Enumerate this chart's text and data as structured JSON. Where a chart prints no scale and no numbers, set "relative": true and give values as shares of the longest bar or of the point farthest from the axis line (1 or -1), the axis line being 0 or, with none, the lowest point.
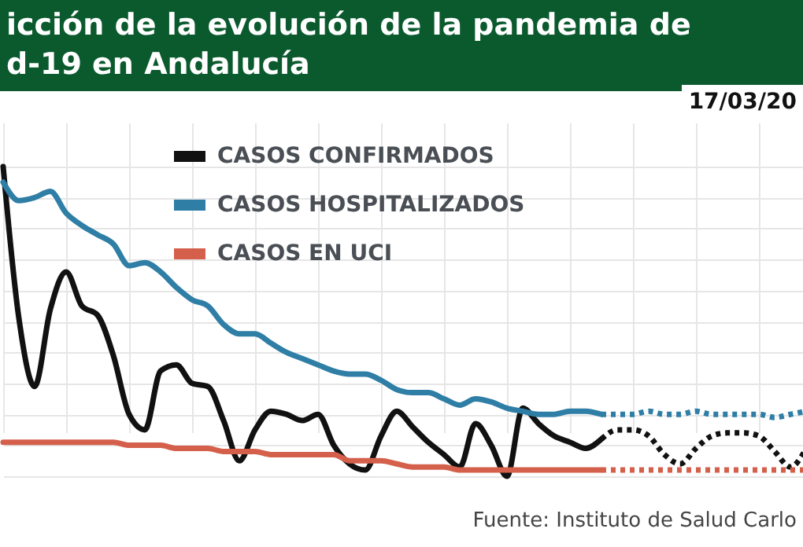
{
  "chart_data": {
    "type": "line",
    "title": "icción de la evolución de la pandemia de\nd-19 en Andalucía",
    "subtitle": "17/03/20",
    "annotations": [
      "Fuente: Instituto de Salud Carlo"
    ],
    "relative": true,
    "grid": true,
    "legend": "top",
    "categories": [
      null,
      null,
      null,
      null,
      null,
      null,
      null,
      null,
      null,
      null,
      null,
      null,
      null,
      null,
      null,
      null,
      null,
      null,
      null,
      null,
      null,
      null,
      null,
      null,
      null,
      null,
      null,
      null,
      null,
      null,
      null,
      null,
      null,
      null,
      null,
      null,
      null,
      null,
      null,
      null,
      null,
      null,
      null,
      null,
      null,
      null,
      null,
      null,
      null,
      null,
      null,
      null
    ],
    "series": [
      {
        "name": "CASOS CONFIRMADOS",
        "color": "#111111",
        "values": [
          1.0,
          0.51,
          0.29,
          0.54,
          0.66,
          0.55,
          0.52,
          0.39,
          0.2,
          0.15,
          0.34,
          0.36,
          0.3,
          0.29,
          0.18,
          0.05,
          0.15,
          0.21,
          0.2,
          0.18,
          0.2,
          0.1,
          0.04,
          0.02,
          0.13,
          0.21,
          0.16,
          0.11,
          0.07,
          0.03,
          0.17,
          0.1,
          0.0,
          0.22,
          0.17,
          0.13,
          0.11,
          0.09,
          0.12,
          null,
          null,
          null,
          null,
          null,
          null,
          null,
          null,
          null,
          null,
          null,
          null,
          null
        ]
      },
      {
        "name": "CASOS HOSPITALIZADOS",
        "color": "#2f7ea6",
        "values": [
          0.95,
          0.89,
          0.9,
          0.92,
          0.85,
          0.81,
          0.78,
          0.75,
          0.68,
          0.69,
          0.66,
          0.61,
          0.57,
          0.55,
          0.49,
          0.46,
          0.46,
          0.43,
          0.4,
          0.38,
          0.36,
          0.34,
          0.33,
          0.33,
          0.31,
          0.28,
          0.27,
          0.27,
          0.25,
          0.23,
          0.25,
          0.24,
          0.22,
          0.21,
          0.2,
          0.2,
          0.21,
          0.21,
          0.2,
          null,
          null,
          null,
          null,
          null,
          null,
          null,
          null,
          null,
          null,
          null,
          null,
          null
        ]
      },
      {
        "name": "CASOS EN UCI",
        "color": "#d4604b",
        "values": [
          0.11,
          0.11,
          0.11,
          0.11,
          0.11,
          0.11,
          0.11,
          0.11,
          0.1,
          0.1,
          0.1,
          0.09,
          0.09,
          0.09,
          0.08,
          0.08,
          0.08,
          0.07,
          0.07,
          0.07,
          0.07,
          0.07,
          0.05,
          0.05,
          0.05,
          0.04,
          0.03,
          0.03,
          0.03,
          0.02,
          0.02,
          0.02,
          0.02,
          0.02,
          0.02,
          0.02,
          0.02,
          0.02,
          0.02,
          null,
          null,
          null,
          null,
          null,
          null,
          null,
          null,
          null,
          null,
          null,
          null,
          null
        ]
      },
      {
        "color": "#111111",
        "line_style": "dotted",
        "values": [
          null,
          null,
          null,
          null,
          null,
          null,
          null,
          null,
          null,
          null,
          null,
          null,
          null,
          null,
          null,
          null,
          null,
          null,
          null,
          null,
          null,
          null,
          null,
          null,
          null,
          null,
          null,
          null,
          null,
          null,
          null,
          null,
          null,
          null,
          null,
          null,
          null,
          null,
          0.12,
          0.15,
          0.15,
          0.13,
          0.07,
          0.04,
          0.09,
          0.13,
          0.14,
          0.14,
          0.13,
          0.08,
          0.03,
          0.09
        ]
      },
      {
        "color": "#2f7ea6",
        "line_style": "dotted",
        "values": [
          null,
          null,
          null,
          null,
          null,
          null,
          null,
          null,
          null,
          null,
          null,
          null,
          null,
          null,
          null,
          null,
          null,
          null,
          null,
          null,
          null,
          null,
          null,
          null,
          null,
          null,
          null,
          null,
          null,
          null,
          null,
          null,
          null,
          null,
          null,
          null,
          null,
          null,
          0.2,
          0.2,
          0.2,
          0.21,
          0.2,
          0.2,
          0.21,
          0.2,
          0.2,
          0.2,
          0.2,
          0.19,
          0.2,
          0.21
        ]
      },
      {
        "color": "#d4604b",
        "line_style": "dotted",
        "values": [
          null,
          null,
          null,
          null,
          null,
          null,
          null,
          null,
          null,
          null,
          null,
          null,
          null,
          null,
          null,
          null,
          null,
          null,
          null,
          null,
          null,
          null,
          null,
          null,
          null,
          null,
          null,
          null,
          null,
          null,
          null,
          null,
          null,
          null,
          null,
          null,
          null,
          null,
          0.02,
          0.02,
          0.02,
          0.02,
          0.02,
          0.02,
          0.02,
          0.02,
          0.02,
          0.02,
          0.02,
          0.02,
          0.02,
          0.02
        ]
      }
    ]
  }
}
